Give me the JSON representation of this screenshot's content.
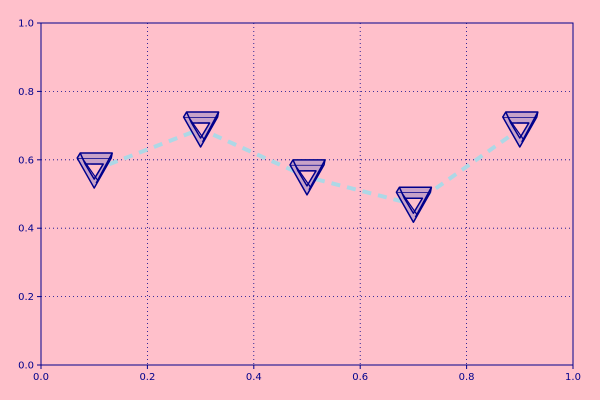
{
  "chart_data": {
    "type": "line",
    "title": "",
    "xlabel": "",
    "ylabel": "",
    "xlim": [
      0,
      1
    ],
    "ylim": [
      0,
      1
    ],
    "xticks": [
      "0.0",
      "0.2",
      "0.4",
      "0.6",
      "0.8",
      "1.0"
    ],
    "yticks": [
      "0.0",
      "0.2",
      "0.4",
      "0.6",
      "0.8",
      "1.0"
    ],
    "grid": true,
    "marker": "impossible-triangle",
    "series": [
      {
        "x": [
          0.1,
          0.3,
          0.5,
          0.7,
          0.9
        ],
        "y": [
          0.57,
          0.69,
          0.55,
          0.47,
          0.69
        ]
      }
    ]
  },
  "colors": {
    "figure_background": "#ffc0cb",
    "axes_background": "#ffc0cb",
    "axes_edge": "#00008b",
    "grid": "#00008b",
    "tick_labels": "#00008b",
    "line": "#add8e6",
    "marker_fill": "#c8a2c8",
    "marker_edge": "#00008b"
  }
}
